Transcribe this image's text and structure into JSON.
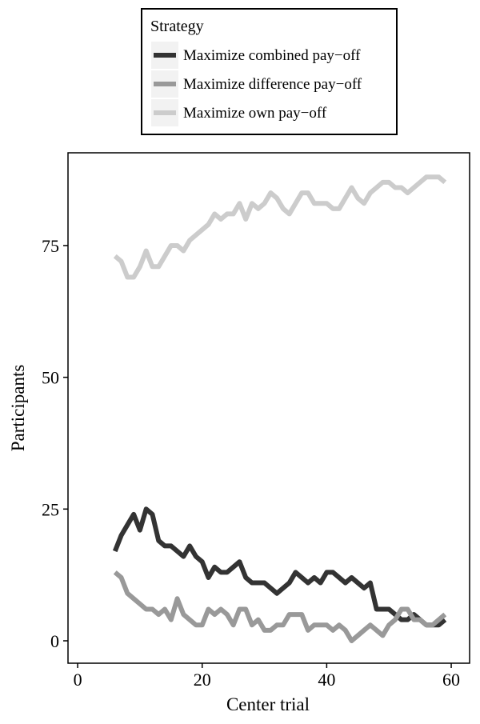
{
  "chart_data": {
    "type": "line",
    "x_label": "Center trial",
    "y_label": "Participants",
    "legend_title": "Strategy",
    "x": [
      6,
      7,
      8,
      9,
      10,
      11,
      12,
      13,
      14,
      15,
      16,
      17,
      18,
      19,
      20,
      21,
      22,
      23,
      24,
      25,
      26,
      27,
      28,
      29,
      30,
      31,
      32,
      33,
      34,
      35,
      36,
      37,
      38,
      39,
      40,
      41,
      42,
      43,
      44,
      45,
      46,
      47,
      48,
      49,
      50,
      51,
      52,
      53,
      54,
      55,
      56,
      57,
      58,
      59
    ],
    "series": [
      {
        "name": "Maximize combined pay−off",
        "color": "#333333",
        "values": [
          17,
          20,
          22,
          24,
          21,
          25,
          24,
          19,
          18,
          18,
          17,
          16,
          18,
          16,
          15,
          12,
          14,
          13,
          13,
          14,
          15,
          12,
          11,
          11,
          11,
          10,
          9,
          10,
          11,
          13,
          12,
          11,
          12,
          11,
          13,
          13,
          12,
          11,
          12,
          11,
          10,
          11,
          6,
          6,
          6,
          5,
          4,
          4,
          5,
          4,
          3,
          3,
          3,
          4
        ]
      },
      {
        "name": "Maximize difference pay−off",
        "color": "#999999",
        "values": [
          13,
          12,
          9,
          8,
          7,
          6,
          6,
          5,
          6,
          4,
          8,
          5,
          4,
          3,
          3,
          6,
          5,
          6,
          5,
          3,
          6,
          6,
          3,
          4,
          2,
          2,
          3,
          3,
          5,
          5,
          5,
          2,
          3,
          3,
          3,
          2,
          3,
          2,
          0,
          1,
          2,
          3,
          2,
          1,
          3,
          4,
          6,
          6,
          4,
          4,
          3,
          3,
          4,
          5
        ]
      },
      {
        "name": "Maximize own pay−off",
        "color": "#cccccc",
        "values": [
          73,
          72,
          69,
          69,
          71,
          74,
          71,
          71,
          73,
          75,
          75,
          74,
          76,
          77,
          78,
          79,
          81,
          80,
          81,
          81,
          83,
          80,
          83,
          82,
          83,
          85,
          84,
          82,
          81,
          83,
          85,
          85,
          83,
          83,
          83,
          82,
          82,
          84,
          86,
          84,
          83,
          85,
          86,
          87,
          87,
          86,
          86,
          85,
          86,
          87,
          88,
          88,
          88,
          87
        ]
      }
    ],
    "xlim": [
      -1.55,
      62.95
    ],
    "ylim": [
      -4.25,
      92.6
    ],
    "xticks": [
      0,
      20,
      40,
      60
    ],
    "yticks": [
      0,
      25,
      50,
      75
    ],
    "grid": false
  }
}
